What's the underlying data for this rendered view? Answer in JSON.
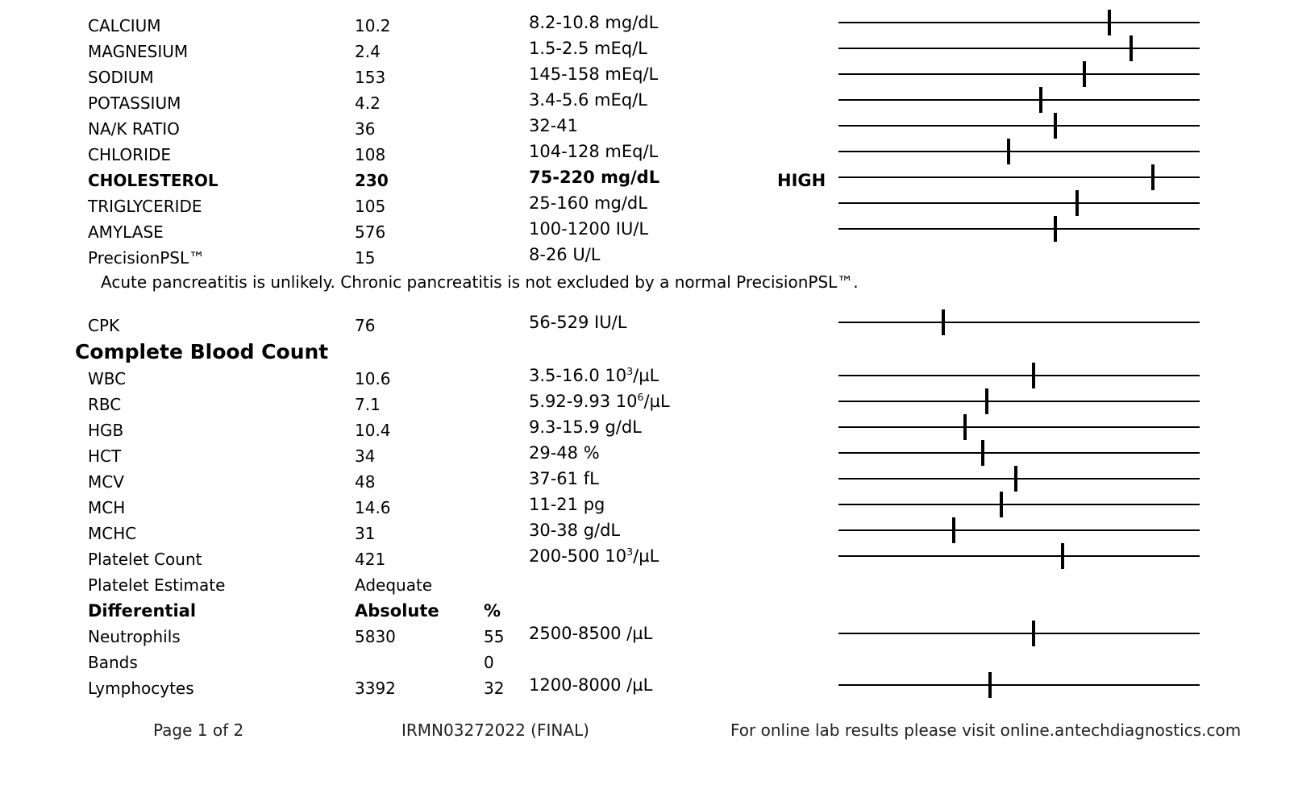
{
  "chemistry_rows": [
    {
      "name": "CALCIUM",
      "value": "10.2",
      "range": "8.2-10.8 mg/dL",
      "flag": "",
      "position": 0.75
    },
    {
      "name": "MAGNESIUM",
      "value": "2.4",
      "range": "1.5-2.5 mEq/L",
      "flag": "",
      "position": 0.81
    },
    {
      "name": "SODIUM",
      "value": "153",
      "range": "145-158 mEq/L",
      "flag": "",
      "position": 0.68
    },
    {
      "name": "POTASSIUM",
      "value": "4.2",
      "range": "3.4-5.6 mEq/L",
      "flag": "",
      "position": 0.56
    },
    {
      "name": "NA/K RATIO",
      "value": "36",
      "range": "32-41",
      "flag": "",
      "position": 0.6
    },
    {
      "name": "CHLORIDE",
      "value": "108",
      "range": "104-128 mEq/L",
      "flag": "",
      "position": 0.47
    },
    {
      "name": "CHOLESTEROL",
      "value": "230",
      "range": "75-220 mg/dL",
      "flag": "HIGH",
      "position": 0.87,
      "bold": true
    },
    {
      "name": "TRIGLYCERIDE",
      "value": "105",
      "range": "25-160 mg/dL",
      "flag": "",
      "position": 0.66
    },
    {
      "name": "AMYLASE",
      "value": "576",
      "range": "100-1200 IU/L",
      "flag": "",
      "position": 0.6
    },
    {
      "name": "PrecisionPSL™",
      "value": "15",
      "range": "8-26 U/L",
      "flag": ""
    }
  ],
  "psl_note": "Acute pancreatitis is unlikely. Chronic pancreatitis is not excluded by a normal PrecisionPSL™.",
  "cpk_row": {
    "name": "CPK",
    "value": "76",
    "range": "56-529 IU/L",
    "position": 0.29
  },
  "cbc_section_title": "Complete Blood Count",
  "cbc_rows": [
    {
      "name": "WBC",
      "value": "10.6",
      "range_html": "3.5-16.0 10<sup>3</sup>/µL",
      "position": 0.54
    },
    {
      "name": "RBC",
      "value": "7.1",
      "range_html": "5.92-9.93 10<sup>6</sup>/µL",
      "position": 0.41
    },
    {
      "name": "HGB",
      "value": "10.4",
      "range_html": "9.3-15.9 g/dL",
      "position": 0.35
    },
    {
      "name": "HCT",
      "value": "34",
      "range_html": "29-48 %",
      "position": 0.4
    },
    {
      "name": "MCV",
      "value": "48",
      "range_html": "37-61 fL",
      "position": 0.49
    },
    {
      "name": "MCH",
      "value": "14.6",
      "range_html": "11-21 pg",
      "position": 0.45
    },
    {
      "name": "MCHC",
      "value": "31",
      "range_html": "30-38 g/dL",
      "position": 0.32
    },
    {
      "name": "Platelet Count",
      "value": "421",
      "range_html": "200-500 10<sup>3</sup>/µL",
      "position": 0.62
    }
  ],
  "platelet_estimate": {
    "name": "Platelet Estimate",
    "value": "Adequate"
  },
  "differential_header": {
    "name": "Differential",
    "absolute": "Absolute",
    "percent": "%"
  },
  "differential_rows": [
    {
      "name": "Neutrophils",
      "absolute": "5830",
      "percent": "55",
      "range": "2500-8500 /µL",
      "position": 0.54
    },
    {
      "name": "Bands",
      "absolute": "",
      "percent": "0",
      "range": ""
    },
    {
      "name": "Lymphocytes",
      "absolute": "3392",
      "percent": "32",
      "range": "1200-8000 /µL",
      "position": 0.42
    }
  ],
  "footer": {
    "page": "Page 1 of  2",
    "accession": "IRMN03272022 (FINAL)",
    "website": "For online lab results please visit online.antechdiagnostics.com"
  }
}
